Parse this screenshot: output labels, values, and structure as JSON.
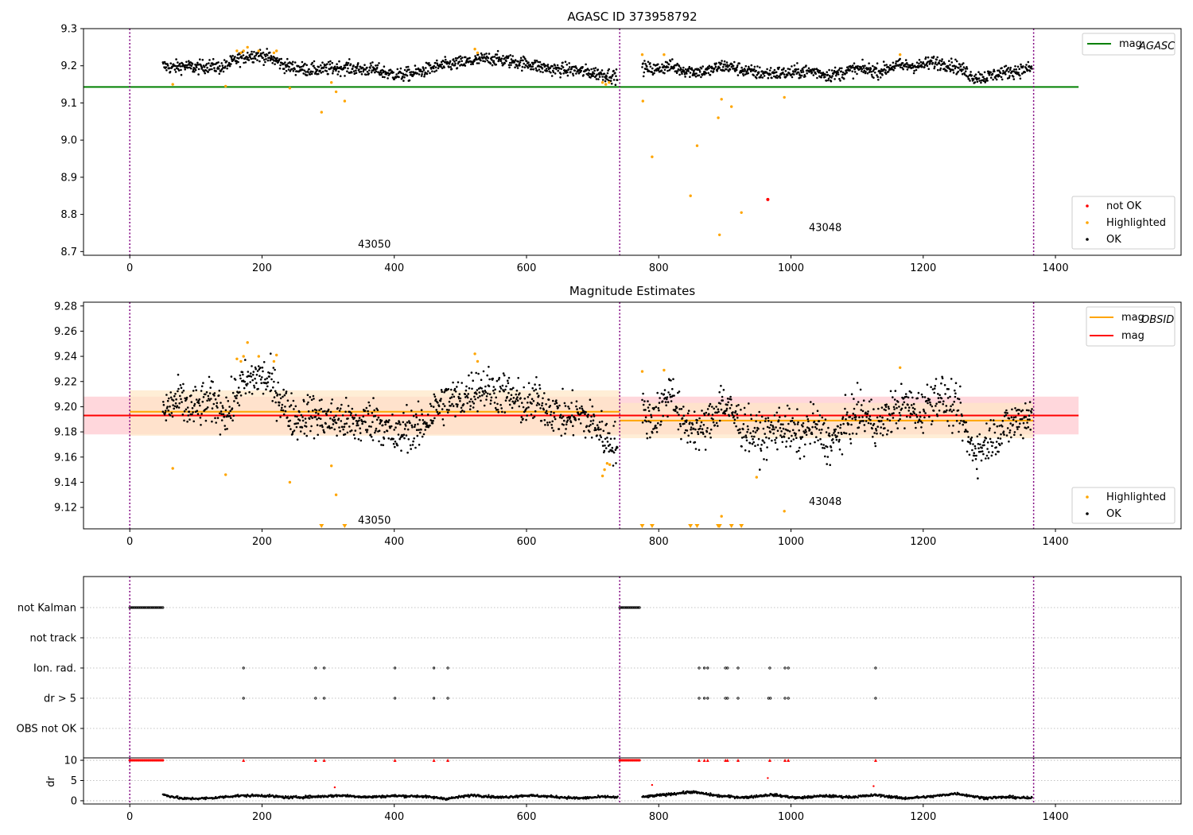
{
  "chart_data": [
    {
      "id": "agasc",
      "type": "scatter",
      "title": "AGASC ID 373958792",
      "xlim": [
        -70,
        1590
      ],
      "ylim": [
        8.69,
        9.3
      ],
      "xticks": [
        0,
        200,
        400,
        600,
        800,
        1000,
        1200,
        1400
      ],
      "yticks": [
        8.7,
        8.8,
        8.9,
        9.0,
        9.1,
        9.2,
        9.3
      ],
      "ytick_labels": [
        "8.7",
        "8.8",
        "8.9",
        "9.0",
        "9.1",
        "9.2",
        "9.3"
      ],
      "observation_boundaries": [
        0,
        741,
        1367
      ],
      "annotations": [
        {
          "text": "43050",
          "x": 345,
          "y": 8.71
        },
        {
          "text": "43048",
          "x": 1027,
          "y": 8.755
        }
      ],
      "hlines": [
        {
          "name": "mag_agasc",
          "y": 9.143,
          "x0": -70,
          "x1": 1435,
          "color": "#008000"
        }
      ],
      "line_legend": {
        "position": "upper right",
        "entries": [
          {
            "label": "mag",
            "sub": "AGASC",
            "color": "#008000"
          }
        ]
      },
      "point_legend": {
        "position": "lower right",
        "entries": [
          {
            "label": "not OK",
            "color": "#ff0000"
          },
          {
            "label": "Highlighted",
            "color": "#ffa500"
          },
          {
            "label": "OK",
            "color": "#000000"
          }
        ]
      },
      "colors": {
        "ok": "#000000",
        "highlighted": "#ffa500",
        "not_ok": "#ff0000"
      },
      "ok_segments": [
        {
          "x": [
            50,
            65,
            80,
            100,
            120,
            140,
            150,
            160,
            175,
            190,
            205,
            220,
            235,
            250,
            270,
            290,
            310,
            330,
            350,
            370,
            390,
            410,
            430,
            450,
            470,
            490,
            510,
            525,
            545,
            565,
            585,
            605,
            625,
            645,
            665,
            685,
            705,
            725,
            738
          ],
          "y": [
            9.2,
            9.195,
            9.2,
            9.195,
            9.2,
            9.195,
            9.205,
            9.215,
            9.225,
            9.23,
            9.225,
            9.215,
            9.2,
            9.195,
            9.19,
            9.19,
            9.195,
            9.195,
            9.19,
            9.19,
            9.18,
            9.175,
            9.18,
            9.19,
            9.2,
            9.205,
            9.21,
            9.215,
            9.22,
            9.215,
            9.21,
            9.205,
            9.195,
            9.19,
            9.19,
            9.185,
            9.18,
            9.175,
            9.17
          ]
        },
        {
          "x": [
            775,
            795,
            815,
            835,
            855,
            875,
            895,
            915,
            935,
            955,
            975,
            995,
            1015,
            1035,
            1055,
            1075,
            1095,
            1115,
            1135,
            1155,
            1175,
            1195,
            1215,
            1235,
            1255,
            1275,
            1295,
            1315,
            1335,
            1355,
            1365
          ],
          "y": [
            9.195,
            9.19,
            9.2,
            9.19,
            9.185,
            9.185,
            9.2,
            9.195,
            9.185,
            9.18,
            9.18,
            9.18,
            9.185,
            9.185,
            9.175,
            9.18,
            9.19,
            9.19,
            9.185,
            9.2,
            9.2,
            9.2,
            9.21,
            9.205,
            9.195,
            9.17,
            9.17,
            9.18,
            9.185,
            9.19,
            9.195
          ]
        }
      ],
      "highlighted_points": [
        {
          "x": 65,
          "y": 9.15
        },
        {
          "x": 145,
          "y": 9.145
        },
        {
          "x": 162,
          "y": 9.24
        },
        {
          "x": 168,
          "y": 9.235
        },
        {
          "x": 172,
          "y": 9.24
        },
        {
          "x": 178,
          "y": 9.25
        },
        {
          "x": 195,
          "y": 9.24
        },
        {
          "x": 218,
          "y": 9.235
        },
        {
          "x": 222,
          "y": 9.24
        },
        {
          "x": 242,
          "y": 9.14
        },
        {
          "x": 290,
          "y": 9.075
        },
        {
          "x": 305,
          "y": 9.155
        },
        {
          "x": 312,
          "y": 9.13
        },
        {
          "x": 325,
          "y": 9.105
        },
        {
          "x": 522,
          "y": 9.245
        },
        {
          "x": 526,
          "y": 9.235
        },
        {
          "x": 715,
          "y": 9.155
        },
        {
          "x": 720,
          "y": 9.15
        },
        {
          "x": 725,
          "y": 9.155
        },
        {
          "x": 775,
          "y": 9.23
        },
        {
          "x": 776,
          "y": 9.105
        },
        {
          "x": 790,
          "y": 8.955
        },
        {
          "x": 808,
          "y": 9.23
        },
        {
          "x": 848,
          "y": 8.85
        },
        {
          "x": 858,
          "y": 8.985
        },
        {
          "x": 890,
          "y": 9.06
        },
        {
          "x": 892,
          "y": 8.745
        },
        {
          "x": 895,
          "y": 9.11
        },
        {
          "x": 910,
          "y": 9.09
        },
        {
          "x": 925,
          "y": 8.805
        },
        {
          "x": 990,
          "y": 9.115
        },
        {
          "x": 1165,
          "y": 9.23
        }
      ],
      "not_ok_points": [
        {
          "x": 965,
          "y": 8.84
        }
      ]
    },
    {
      "id": "mag_estimates",
      "type": "scatter",
      "title": "Magnitude Estimates",
      "xlim": [
        -70,
        1590
      ],
      "ylim": [
        9.103,
        9.283
      ],
      "xticks": [
        0,
        200,
        400,
        600,
        800,
        1000,
        1200,
        1400
      ],
      "yticks": [
        9.12,
        9.14,
        9.16,
        9.18,
        9.2,
        9.22,
        9.24,
        9.26,
        9.28
      ],
      "ytick_labels": [
        "9.12",
        "9.14",
        "9.16",
        "9.18",
        "9.20",
        "9.22",
        "9.24",
        "9.26",
        "9.28"
      ],
      "observation_boundaries": [
        0,
        741,
        1367
      ],
      "annotations": [
        {
          "text": "43050",
          "x": 345,
          "y": 9.107
        },
        {
          "text": "43048",
          "x": 1027,
          "y": 9.122
        }
      ],
      "bands": [
        {
          "name": "mag",
          "x0": -70,
          "x1": 1435,
          "y0": 9.178,
          "y1": 9.208,
          "color": "#ffd0d6"
        },
        {
          "name": "mag_obsid_43050",
          "x0": 0,
          "x1": 741,
          "y0": 9.177,
          "y1": 9.213,
          "color": "#ffe7c4"
        },
        {
          "name": "mag_obsid_43048",
          "x0": 741,
          "x1": 1367,
          "y0": 9.175,
          "y1": 9.203,
          "color": "#ffe7c4"
        }
      ],
      "hlines": [
        {
          "name": "mag_obsid_43050",
          "y": 9.196,
          "x0": 0,
          "x1": 741,
          "color": "#ffa500"
        },
        {
          "name": "mag_obsid_43048",
          "y": 9.189,
          "x0": 741,
          "x1": 1367,
          "color": "#ffa500"
        },
        {
          "name": "mag",
          "y": 9.193,
          "x0": -70,
          "x1": 1435,
          "color": "#ff0000"
        }
      ],
      "line_legend": {
        "position": "upper right",
        "entries": [
          {
            "label": "mag",
            "sub": "OBSID",
            "color": "#ffa500"
          },
          {
            "label": "mag",
            "sub": "",
            "color": "#ff0000"
          }
        ]
      },
      "point_legend": {
        "position": "lower right",
        "entries": [
          {
            "label": "Highlighted",
            "color": "#ffa500"
          },
          {
            "label": "OK",
            "color": "#000000"
          }
        ]
      },
      "colors": {
        "ok": "#000000",
        "highlighted": "#ffa500"
      },
      "ok_segments": [
        {
          "x": [
            50,
            60,
            75,
            90,
            105,
            120,
            135,
            150,
            165,
            180,
            195,
            210,
            225,
            240,
            255,
            270,
            285,
            300,
            315,
            330,
            345,
            360,
            375,
            390,
            405,
            420,
            435,
            450,
            465,
            480,
            495,
            510,
            525,
            540,
            555,
            570,
            585,
            600,
            615,
            630,
            645,
            660,
            675,
            690,
            705,
            720,
            738
          ],
          "y": [
            9.195,
            9.2,
            9.205,
            9.198,
            9.2,
            9.205,
            9.2,
            9.195,
            9.215,
            9.22,
            9.225,
            9.22,
            9.21,
            9.195,
            9.19,
            9.195,
            9.192,
            9.19,
            9.19,
            9.188,
            9.185,
            9.19,
            9.19,
            9.18,
            9.175,
            9.185,
            9.18,
            9.19,
            9.2,
            9.205,
            9.205,
            9.21,
            9.215,
            9.215,
            9.212,
            9.21,
            9.205,
            9.2,
            9.205,
            9.2,
            9.195,
            9.19,
            9.195,
            9.19,
            9.185,
            9.175,
            9.17
          ]
        },
        {
          "x": [
            775,
            790,
            805,
            820,
            835,
            850,
            865,
            880,
            895,
            910,
            925,
            940,
            955,
            970,
            985,
            1000,
            1015,
            1030,
            1045,
            1060,
            1075,
            1090,
            1105,
            1120,
            1135,
            1150,
            1165,
            1180,
            1195,
            1210,
            1225,
            1240,
            1255,
            1270,
            1285,
            1300,
            1315,
            1330,
            1345,
            1365
          ],
          "y": [
            9.195,
            9.19,
            9.2,
            9.215,
            9.185,
            9.185,
            9.18,
            9.19,
            9.205,
            9.195,
            9.185,
            9.18,
            9.175,
            9.18,
            9.185,
            9.18,
            9.175,
            9.185,
            9.18,
            9.17,
            9.18,
            9.19,
            9.195,
            9.19,
            9.185,
            9.195,
            9.2,
            9.2,
            9.195,
            9.205,
            9.21,
            9.2,
            9.195,
            9.17,
            9.165,
            9.175,
            9.18,
            9.185,
            9.19,
            9.195
          ]
        }
      ],
      "highlighted_points": [
        {
          "x": 65,
          "y": 9.151
        },
        {
          "x": 145,
          "y": 9.146
        },
        {
          "x": 162,
          "y": 9.238
        },
        {
          "x": 168,
          "y": 9.236
        },
        {
          "x": 172,
          "y": 9.24
        },
        {
          "x": 178,
          "y": 9.251
        },
        {
          "x": 195,
          "y": 9.24
        },
        {
          "x": 218,
          "y": 9.236
        },
        {
          "x": 222,
          "y": 9.241
        },
        {
          "x": 242,
          "y": 9.14
        },
        {
          "x": 305,
          "y": 9.153
        },
        {
          "x": 312,
          "y": 9.13
        },
        {
          "x": 522,
          "y": 9.242
        },
        {
          "x": 526,
          "y": 9.236
        },
        {
          "x": 715,
          "y": 9.145
        },
        {
          "x": 718,
          "y": 9.15
        },
        {
          "x": 722,
          "y": 9.155
        },
        {
          "x": 726,
          "y": 9.154
        },
        {
          "x": 775,
          "y": 9.228
        },
        {
          "x": 808,
          "y": 9.229
        },
        {
          "x": 895,
          "y": 9.113
        },
        {
          "x": 948,
          "y": 9.144
        },
        {
          "x": 990,
          "y": 9.117
        },
        {
          "x": 1165,
          "y": 9.231
        }
      ],
      "highlighted_offscale": [
        290,
        325,
        775,
        790,
        848,
        858,
        890,
        892,
        910,
        925
      ]
    },
    {
      "id": "flags",
      "type": "scatter",
      "xlim": [
        -70,
        1590
      ],
      "xticks": [
        0,
        200,
        400,
        600,
        800,
        1000,
        1200,
        1400
      ],
      "observation_boundaries": [
        0,
        741,
        1367
      ],
      "rows": [
        "not Kalman",
        "not track",
        "Ion. rad.",
        "dr > 5",
        "OBS not OK"
      ],
      "row_points": {
        "not Kalman": {
          "ranges": [
            [
              0,
              50
            ],
            [
              741,
              772
            ]
          ]
        },
        "not track": {
          "ranges": []
        },
        "Ion. rad.": {
          "x": [
            172,
            281,
            294,
            401,
            460,
            481,
            861,
            869,
            874,
            901,
            904,
            920,
            968,
            991,
            996,
            1128
          ]
        },
        "dr > 5": {
          "x": [
            172,
            281,
            294,
            401,
            460,
            481,
            861,
            869,
            874,
            901,
            904,
            920,
            966,
            969,
            991,
            996,
            1128
          ]
        },
        "OBS not OK": {
          "x": []
        }
      }
    },
    {
      "id": "dr",
      "type": "scatter",
      "xlim": [
        -70,
        1590
      ],
      "ylim": [
        -0.8,
        10.6
      ],
      "ylabel": "dr",
      "xticks": [
        0,
        200,
        400,
        600,
        800,
        1000,
        1200,
        1400
      ],
      "yticks": [
        0,
        5,
        10
      ],
      "ytick_labels": [
        "0",
        "5",
        "10"
      ],
      "observation_boundaries": [
        0,
        741,
        1367
      ],
      "capped_value": 10,
      "capped_ranges": [
        [
          0,
          50
        ],
        [
          741,
          772
        ]
      ],
      "capped_x": [
        172,
        281,
        294,
        401,
        460,
        481,
        861,
        869,
        874,
        901,
        904,
        920,
        968,
        991,
        996,
        1128
      ],
      "outliers": [
        {
          "x": 310,
          "y": 3.3
        },
        {
          "x": 790,
          "y": 3.9
        },
        {
          "x": 965,
          "y": 5.6
        },
        {
          "x": 1125,
          "y": 3.6
        }
      ],
      "dr_segments": [
        {
          "x": [
            50,
            80,
            120,
            160,
            200,
            240,
            280,
            320,
            360,
            400,
            440,
            480,
            520,
            560,
            600,
            640,
            680,
            720,
            738
          ],
          "y": [
            1.5,
            0.5,
            0.6,
            1.2,
            1.3,
            0.8,
            1.0,
            1.3,
            0.9,
            1.2,
            1.1,
            0.5,
            1.4,
            0.8,
            1.3,
            1.0,
            0.6,
            1.0,
            0.8
          ]
        },
        {
          "x": [
            775,
            810,
            850,
            890,
            930,
            970,
            1010,
            1050,
            1090,
            1130,
            1170,
            1210,
            1250,
            1290,
            1330,
            1365
          ],
          "y": [
            0.9,
            1.5,
            2.2,
            1.2,
            0.8,
            1.5,
            0.7,
            1.2,
            0.9,
            1.4,
            0.6,
            1.0,
            1.8,
            0.7,
            0.9,
            0.6
          ]
        }
      ]
    }
  ]
}
